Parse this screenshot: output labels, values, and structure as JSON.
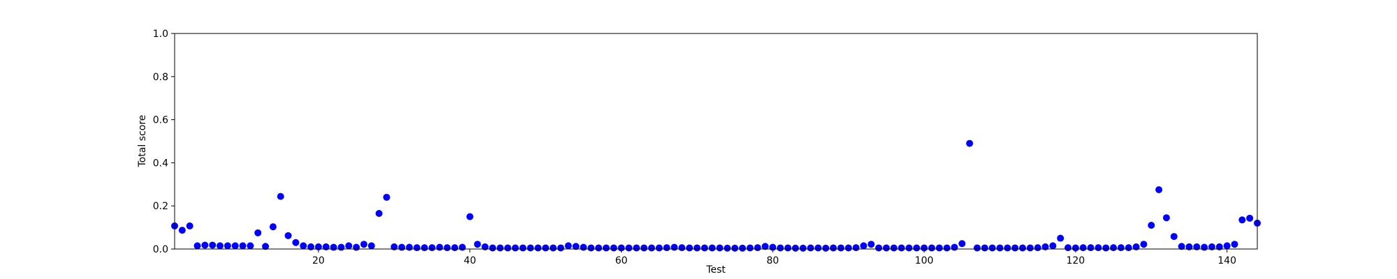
{
  "chart_data": {
    "type": "scatter",
    "x_label": "Test",
    "y_label": "Total score",
    "color": "#0000ff",
    "x": [
      1,
      2,
      3,
      4,
      5,
      6,
      7,
      8,
      9,
      10,
      11,
      12,
      13,
      14,
      15,
      16,
      17,
      18,
      19,
      20,
      21,
      22,
      23,
      24,
      25,
      26,
      27,
      28,
      29,
      30,
      31,
      32,
      33,
      34,
      35,
      36,
      37,
      38,
      39,
      40,
      41,
      42,
      43,
      44,
      45,
      46,
      47,
      48,
      49,
      50,
      51,
      52,
      53,
      54,
      55,
      56,
      57,
      58,
      59,
      60,
      61,
      62,
      63,
      64,
      65,
      66,
      67,
      68,
      69,
      70,
      71,
      72,
      73,
      74,
      75,
      76,
      77,
      78,
      79,
      80,
      81,
      82,
      83,
      84,
      85,
      86,
      87,
      88,
      89,
      90,
      91,
      92,
      93,
      94,
      95,
      96,
      97,
      98,
      99,
      100,
      101,
      102,
      103,
      104,
      105,
      106,
      107,
      108,
      109,
      110,
      111,
      112,
      113,
      114,
      115,
      116,
      117,
      118,
      119,
      120,
      121,
      122,
      123,
      124,
      125,
      126,
      127,
      128,
      129,
      130,
      131,
      132,
      133,
      134,
      135,
      136,
      137,
      138,
      139,
      140,
      141,
      142,
      143,
      144
    ],
    "values": [
      0.107,
      0.087,
      0.107,
      0.015,
      0.018,
      0.018,
      0.015,
      0.015,
      0.015,
      0.015,
      0.015,
      0.075,
      0.012,
      0.103,
      0.244,
      0.062,
      0.03,
      0.015,
      0.01,
      0.01,
      0.01,
      0.008,
      0.008,
      0.015,
      0.008,
      0.022,
      0.015,
      0.165,
      0.24,
      0.01,
      0.008,
      0.008,
      0.006,
      0.006,
      0.006,
      0.008,
      0.006,
      0.006,
      0.008,
      0.15,
      0.022,
      0.01,
      0.005,
      0.005,
      0.005,
      0.005,
      0.005,
      0.005,
      0.005,
      0.005,
      0.005,
      0.005,
      0.015,
      0.012,
      0.008,
      0.005,
      0.005,
      0.005,
      0.005,
      0.005,
      0.005,
      0.005,
      0.005,
      0.005,
      0.005,
      0.006,
      0.008,
      0.006,
      0.005,
      0.005,
      0.005,
      0.005,
      0.005,
      0.004,
      0.004,
      0.004,
      0.005,
      0.006,
      0.012,
      0.008,
      0.005,
      0.005,
      0.004,
      0.004,
      0.005,
      0.005,
      0.004,
      0.005,
      0.005,
      0.005,
      0.006,
      0.015,
      0.022,
      0.005,
      0.005,
      0.005,
      0.005,
      0.005,
      0.005,
      0.005,
      0.005,
      0.005,
      0.005,
      0.008,
      0.025,
      0.49,
      0.005,
      0.005,
      0.005,
      0.005,
      0.005,
      0.005,
      0.005,
      0.005,
      0.006,
      0.01,
      0.015,
      0.05,
      0.006,
      0.005,
      0.006,
      0.006,
      0.006,
      0.005,
      0.006,
      0.006,
      0.006,
      0.01,
      0.022,
      0.11,
      0.275,
      0.145,
      0.058,
      0.012,
      0.01,
      0.01,
      0.008,
      0.01,
      0.01,
      0.015,
      0.022,
      0.135,
      0.143,
      0.12
    ],
    "xlim": [
      1,
      144
    ],
    "xticks": [
      20,
      40,
      60,
      80,
      100,
      120,
      140
    ],
    "ylim": [
      0,
      1
    ],
    "yticks": [
      {
        "value": 0,
        "label": "0.0"
      },
      {
        "value": 0.2,
        "label": "0.2"
      },
      {
        "value": 0.4,
        "label": "0.4"
      },
      {
        "value": 0.6,
        "label": "0.6"
      },
      {
        "value": 0.8,
        "label": "0.8"
      },
      {
        "value": 1,
        "label": "1.0"
      }
    ]
  }
}
